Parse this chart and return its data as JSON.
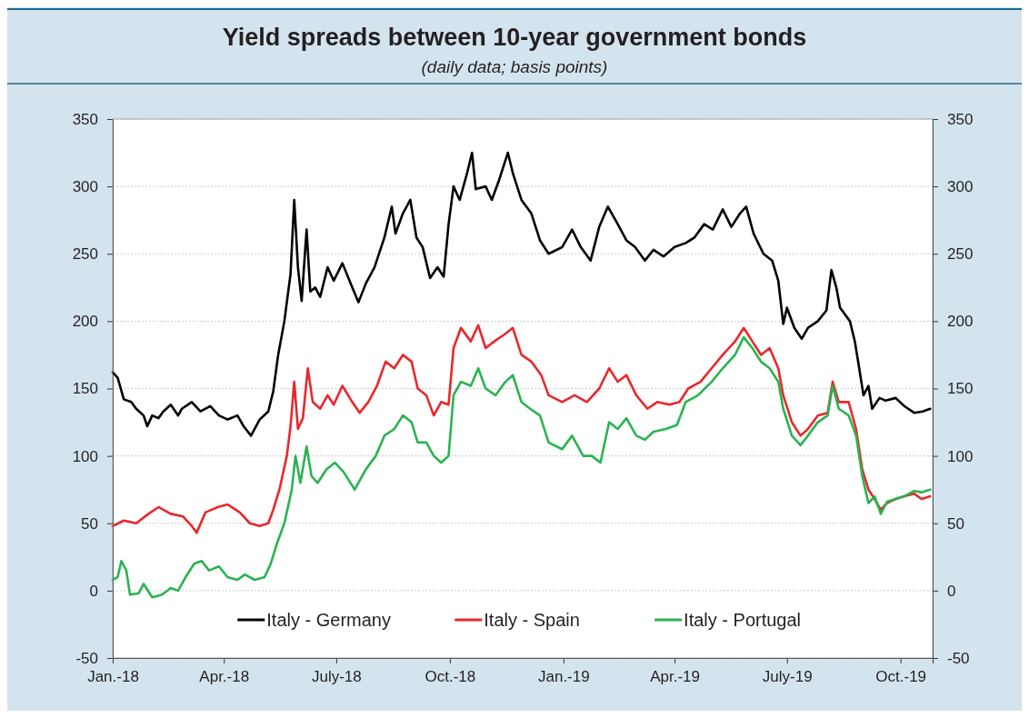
{
  "chart_data": {
    "type": "line",
    "title": "Yield spreads between 10-year government bonds",
    "subtitle": "(daily data; basis points)",
    "xlim": [
      "2018-01-01",
      "2019-10-27"
    ],
    "xticks": [
      {
        "value": "2018-01-01",
        "label": "Jan.-18"
      },
      {
        "value": "2018-04-01",
        "label": "Apr.-18"
      },
      {
        "value": "2018-07-01",
        "label": "July-18"
      },
      {
        "value": "2018-10-01",
        "label": "Oct.-18"
      },
      {
        "value": "2019-01-01",
        "label": "Jan.-19"
      },
      {
        "value": "2019-04-01",
        "label": "Apr.-19"
      },
      {
        "value": "2019-07-01",
        "label": "July-19"
      },
      {
        "value": "2019-10-01",
        "label": "Oct.-19"
      }
    ],
    "ylim": [
      -50,
      350
    ],
    "yticks": [
      -50,
      0,
      50,
      100,
      150,
      200,
      250,
      300,
      350
    ],
    "y2lim": [
      -50,
      350
    ],
    "y2ticks": [
      -50,
      0,
      50,
      100,
      150,
      200,
      250,
      300,
      350
    ],
    "grid": "y",
    "legend": "bottom",
    "series": [
      {
        "name": "Italy - Germany",
        "color": "#000000",
        "x": [
          "2018-01-01",
          "2018-01-05",
          "2018-01-10",
          "2018-01-16",
          "2018-01-20",
          "2018-01-26",
          "2018-01-29",
          "2018-02-02",
          "2018-02-07",
          "2018-02-11",
          "2018-02-17",
          "2018-02-23",
          "2018-02-26",
          "2018-03-06",
          "2018-03-13",
          "2018-03-21",
          "2018-03-28",
          "2018-04-04",
          "2018-04-12",
          "2018-04-17",
          "2018-04-23",
          "2018-04-30",
          "2018-05-07",
          "2018-05-11",
          "2018-05-15",
          "2018-05-20",
          "2018-05-25",
          "2018-05-28",
          "2018-05-31",
          "2018-06-03",
          "2018-06-07",
          "2018-06-10",
          "2018-06-14",
          "2018-06-18",
          "2018-06-24",
          "2018-06-29",
          "2018-07-06",
          "2018-07-14",
          "2018-07-19",
          "2018-07-25",
          "2018-08-01",
          "2018-08-09",
          "2018-08-15",
          "2018-08-18",
          "2018-08-24",
          "2018-08-30",
          "2018-09-04",
          "2018-09-09",
          "2018-09-15",
          "2018-09-21",
          "2018-09-26",
          "2018-09-30",
          "2018-10-04",
          "2018-10-09",
          "2018-10-15",
          "2018-10-19",
          "2018-10-22",
          "2018-10-30",
          "2018-11-04",
          "2018-11-10",
          "2018-11-17",
          "2018-11-21",
          "2018-11-28",
          "2018-12-06",
          "2018-12-13",
          "2018-12-20",
          "2018-12-31",
          "2019-01-08",
          "2019-01-15",
          "2019-01-23",
          "2019-01-30",
          "2019-02-06",
          "2019-02-14",
          "2019-02-21",
          "2019-02-28",
          "2019-03-08",
          "2019-03-15",
          "2019-03-23",
          "2019-04-01",
          "2019-04-10",
          "2019-04-17",
          "2019-04-25",
          "2019-05-02",
          "2019-05-10",
          "2019-05-17",
          "2019-05-24",
          "2019-05-29",
          "2019-06-04",
          "2019-06-12",
          "2019-06-19",
          "2019-06-24",
          "2019-06-28",
          "2019-07-01",
          "2019-07-07",
          "2019-07-13",
          "2019-07-18",
          "2019-07-26",
          "2019-08-02",
          "2019-08-06",
          "2019-08-10",
          "2019-08-13",
          "2019-08-21",
          "2019-08-25",
          "2019-08-28",
          "2019-09-01",
          "2019-09-05",
          "2019-09-08",
          "2019-09-14",
          "2019-09-19",
          "2019-09-27",
          "2019-10-04",
          "2019-10-12",
          "2019-10-19",
          "2019-10-25"
        ],
        "values": [
          162,
          158,
          142,
          140,
          135,
          130,
          122,
          130,
          128,
          133,
          138,
          130,
          135,
          140,
          133,
          137,
          130,
          127,
          130,
          122,
          115,
          127,
          133,
          148,
          175,
          200,
          235,
          290,
          240,
          215,
          268,
          222,
          225,
          218,
          240,
          230,
          243,
          225,
          214,
          228,
          240,
          262,
          285,
          265,
          280,
          290,
          262,
          255,
          232,
          240,
          233,
          272,
          300,
          290,
          310,
          325,
          298,
          300,
          290,
          305,
          325,
          310,
          290,
          280,
          260,
          250,
          255,
          268,
          255,
          245,
          270,
          285,
          272,
          260,
          255,
          245,
          253,
          248,
          255,
          258,
          262,
          272,
          268,
          283,
          270,
          280,
          285,
          265,
          250,
          245,
          230,
          198,
          210,
          195,
          187,
          195,
          200,
          208,
          238,
          225,
          210,
          200,
          185,
          168,
          145,
          152,
          135,
          143,
          141,
          143,
          137,
          132,
          133,
          135
        ]
      },
      {
        "name": "Italy - Spain",
        "color": "#e8282c",
        "x": [
          "2018-01-01",
          "2018-01-10",
          "2018-01-20",
          "2018-01-30",
          "2018-02-07",
          "2018-02-17",
          "2018-02-27",
          "2018-03-06",
          "2018-03-10",
          "2018-03-17",
          "2018-03-27",
          "2018-04-04",
          "2018-04-14",
          "2018-04-22",
          "2018-04-30",
          "2018-05-07",
          "2018-05-11",
          "2018-05-16",
          "2018-05-22",
          "2018-05-25",
          "2018-05-28",
          "2018-05-31",
          "2018-06-04",
          "2018-06-08",
          "2018-06-12",
          "2018-06-18",
          "2018-06-24",
          "2018-06-29",
          "2018-07-06",
          "2018-07-14",
          "2018-07-20",
          "2018-07-27",
          "2018-08-03",
          "2018-08-10",
          "2018-08-17",
          "2018-08-24",
          "2018-08-31",
          "2018-09-05",
          "2018-09-12",
          "2018-09-18",
          "2018-09-24",
          "2018-09-30",
          "2018-10-04",
          "2018-10-10",
          "2018-10-18",
          "2018-10-24",
          "2018-10-30",
          "2018-11-06",
          "2018-11-14",
          "2018-11-21",
          "2018-11-28",
          "2018-12-06",
          "2018-12-14",
          "2018-12-20",
          "2018-12-31",
          "2019-01-10",
          "2019-01-20",
          "2019-01-30",
          "2019-02-07",
          "2019-02-14",
          "2019-02-21",
          "2019-03-01",
          "2019-03-10",
          "2019-03-18",
          "2019-03-28",
          "2019-04-05",
          "2019-04-12",
          "2019-04-22",
          "2019-05-01",
          "2019-05-10",
          "2019-05-20",
          "2019-05-27",
          "2019-06-03",
          "2019-06-10",
          "2019-06-17",
          "2019-06-24",
          "2019-06-28",
          "2019-07-05",
          "2019-07-12",
          "2019-07-18",
          "2019-07-26",
          "2019-08-03",
          "2019-08-07",
          "2019-08-12",
          "2019-08-20",
          "2019-08-26",
          "2019-08-31",
          "2019-09-05",
          "2019-09-10",
          "2019-09-15",
          "2019-09-20",
          "2019-09-27",
          "2019-10-04",
          "2019-10-12",
          "2019-10-18",
          "2019-10-25"
        ],
        "values": [
          48,
          52,
          50,
          57,
          62,
          57,
          55,
          48,
          43,
          58,
          62,
          64,
          58,
          50,
          48,
          50,
          60,
          75,
          100,
          122,
          155,
          120,
          128,
          165,
          140,
          135,
          145,
          138,
          152,
          140,
          132,
          140,
          152,
          170,
          165,
          175,
          170,
          150,
          145,
          130,
          140,
          138,
          180,
          195,
          185,
          197,
          180,
          185,
          190,
          195,
          175,
          170,
          160,
          145,
          140,
          145,
          140,
          150,
          165,
          155,
          160,
          145,
          135,
          140,
          138,
          140,
          150,
          155,
          165,
          175,
          185,
          195,
          185,
          175,
          180,
          165,
          145,
          125,
          115,
          120,
          130,
          132,
          155,
          140,
          140,
          120,
          90,
          75,
          68,
          60,
          65,
          68,
          70,
          72,
          68,
          70
        ]
      },
      {
        "name": "Italy - Portugal",
        "color": "#2ab350",
        "x": [
          "2018-01-01",
          "2018-01-05",
          "2018-01-08",
          "2018-01-12",
          "2018-01-15",
          "2018-01-22",
          "2018-01-26",
          "2018-02-02",
          "2018-02-10",
          "2018-02-17",
          "2018-02-23",
          "2018-03-01",
          "2018-03-08",
          "2018-03-14",
          "2018-03-20",
          "2018-03-28",
          "2018-04-04",
          "2018-04-12",
          "2018-04-18",
          "2018-04-26",
          "2018-05-04",
          "2018-05-09",
          "2018-05-14",
          "2018-05-20",
          "2018-05-26",
          "2018-05-29",
          "2018-06-02",
          "2018-06-07",
          "2018-06-11",
          "2018-06-16",
          "2018-06-23",
          "2018-06-30",
          "2018-07-07",
          "2018-07-16",
          "2018-07-25",
          "2018-08-02",
          "2018-08-09",
          "2018-08-17",
          "2018-08-24",
          "2018-08-31",
          "2018-09-05",
          "2018-09-12",
          "2018-09-18",
          "2018-09-24",
          "2018-09-30",
          "2018-10-04",
          "2018-10-10",
          "2018-10-18",
          "2018-10-24",
          "2018-10-30",
          "2018-11-07",
          "2018-11-15",
          "2018-11-21",
          "2018-11-28",
          "2018-12-05",
          "2018-12-13",
          "2018-12-20",
          "2018-12-31",
          "2019-01-08",
          "2019-01-17",
          "2019-01-24",
          "2019-01-31",
          "2019-02-07",
          "2019-02-14",
          "2019-02-21",
          "2019-03-01",
          "2019-03-08",
          "2019-03-15",
          "2019-03-25",
          "2019-04-03",
          "2019-04-10",
          "2019-04-20",
          "2019-05-01",
          "2019-05-10",
          "2019-05-20",
          "2019-05-27",
          "2019-06-03",
          "2019-06-10",
          "2019-06-17",
          "2019-06-24",
          "2019-06-28",
          "2019-07-05",
          "2019-07-12",
          "2019-07-18",
          "2019-07-26",
          "2019-08-03",
          "2019-08-07",
          "2019-08-12",
          "2019-08-20",
          "2019-08-26",
          "2019-08-31",
          "2019-09-05",
          "2019-09-10",
          "2019-09-15",
          "2019-09-20",
          "2019-09-27",
          "2019-10-04",
          "2019-10-12",
          "2019-10-18",
          "2019-10-25"
        ],
        "values": [
          8,
          10,
          22,
          15,
          -3,
          -2,
          5,
          -5,
          -3,
          2,
          0,
          10,
          20,
          22,
          15,
          18,
          10,
          8,
          12,
          8,
          10,
          20,
          35,
          50,
          75,
          100,
          80,
          107,
          85,
          80,
          90,
          95,
          88,
          75,
          90,
          100,
          115,
          120,
          130,
          125,
          110,
          110,
          100,
          95,
          100,
          145,
          155,
          152,
          165,
          150,
          145,
          155,
          160,
          140,
          135,
          130,
          110,
          105,
          115,
          100,
          100,
          95,
          125,
          120,
          128,
          115,
          112,
          118,
          120,
          123,
          140,
          145,
          155,
          165,
          175,
          188,
          180,
          170,
          165,
          155,
          135,
          115,
          108,
          115,
          125,
          130,
          152,
          135,
          130,
          115,
          85,
          65,
          70,
          57,
          66,
          68,
          70,
          74,
          73,
          75
        ]
      }
    ]
  }
}
